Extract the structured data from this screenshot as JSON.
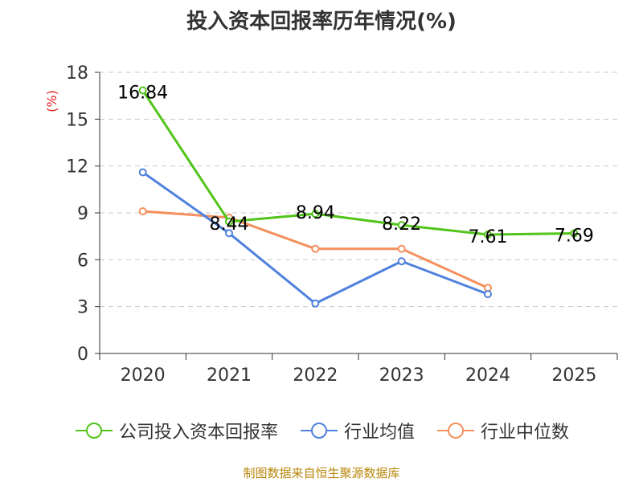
{
  "title": "投入资本回报率历年情况(%)",
  "source": "制图数据来自恒生聚源数据库",
  "chart_data": {
    "type": "line",
    "title": "投入资本回报率历年情况(%)",
    "ylabel": "(%)",
    "xlabel": "",
    "categories": [
      "2020",
      "2021",
      "2022",
      "2023",
      "2024",
      "2025"
    ],
    "ylim": [
      0,
      18
    ],
    "yticks": [
      0,
      3,
      6,
      9,
      12,
      15,
      18
    ],
    "grid": true,
    "legend_position": "bottom",
    "series": [
      {
        "name": "公司投入资本回报率",
        "color": "#52c41a",
        "values": [
          16.84,
          8.44,
          8.94,
          8.22,
          7.61,
          7.69
        ],
        "labels": [
          "16.84",
          "8.44",
          "8.94",
          "8.22",
          "7.61",
          "7.69"
        ]
      },
      {
        "name": "行业均值",
        "color": "#4f81dd",
        "values": [
          11.6,
          7.7,
          3.2,
          5.9,
          3.8,
          null
        ]
      },
      {
        "name": "行业中位数",
        "color": "#f5905e",
        "values": [
          9.1,
          8.7,
          6.7,
          6.7,
          4.2,
          null
        ]
      }
    ]
  }
}
